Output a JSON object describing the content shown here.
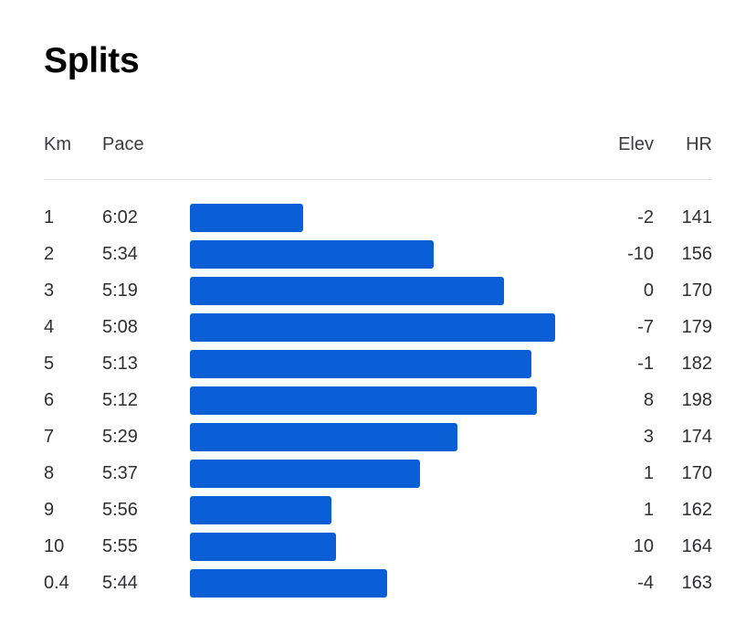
{
  "title": "Splits",
  "columns": {
    "km": "Km",
    "pace": "Pace",
    "elev": "Elev",
    "hr": "HR"
  },
  "bar_color": "#0a5fd6",
  "splits": [
    {
      "km": "1",
      "pace": "6:02",
      "elev": "-2",
      "hr": "141",
      "pace_seconds": 362
    },
    {
      "km": "2",
      "pace": "5:34",
      "elev": "-10",
      "hr": "156",
      "pace_seconds": 334
    },
    {
      "km": "3",
      "pace": "5:19",
      "elev": "0",
      "hr": "170",
      "pace_seconds": 319
    },
    {
      "km": "4",
      "pace": "5:08",
      "elev": "-7",
      "hr": "179",
      "pace_seconds": 308
    },
    {
      "km": "5",
      "pace": "5:13",
      "elev": "-1",
      "hr": "182",
      "pace_seconds": 313
    },
    {
      "km": "6",
      "pace": "5:12",
      "elev": "8",
      "hr": "198",
      "pace_seconds": 312
    },
    {
      "km": "7",
      "pace": "5:29",
      "elev": "3",
      "hr": "174",
      "pace_seconds": 329
    },
    {
      "km": "8",
      "pace": "5:37",
      "elev": "1",
      "hr": "170",
      "pace_seconds": 337
    },
    {
      "km": "9",
      "pace": "5:56",
      "elev": "1",
      "hr": "162",
      "pace_seconds": 356
    },
    {
      "km": "10",
      "pace": "5:55",
      "elev": "10",
      "hr": "164",
      "pace_seconds": 355
    },
    {
      "km": "0.4",
      "pace": "5:44",
      "elev": "-4",
      "hr": "163",
      "pace_seconds": 344
    }
  ]
}
